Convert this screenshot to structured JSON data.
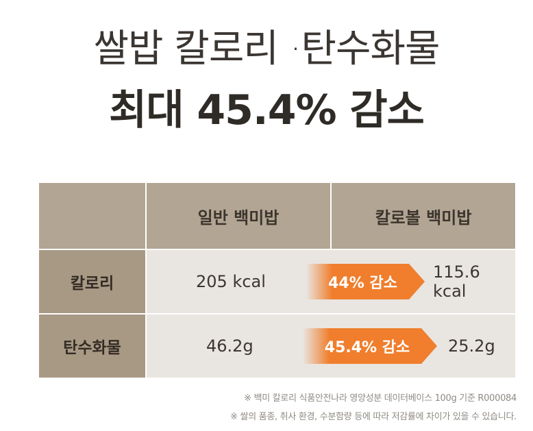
{
  "headline": {
    "line1": "쌀밥 칼로리 ·탄수화물",
    "line2": "최대 45.4% 감소"
  },
  "table": {
    "columns": [
      "일반 백미밥",
      "칼로볼 백미밥"
    ],
    "rows": [
      {
        "label": "칼로리",
        "regular": "205 kcal",
        "reduction": "44% 감소",
        "calobol": "115.6 kcal"
      },
      {
        "label": "탄수화물",
        "regular": "46.2g",
        "reduction": "45.4% 감소",
        "calobol": "25.2g"
      }
    ]
  },
  "notes": [
    "※ 백미 칼로리 식품안전나라 영양성분 데이터베이스  100g 기준 R000084",
    "※ 쌀의 품종, 취사 환경, 수분함량 등에 따라 저감률에 차이가 있을 수 있습니다."
  ],
  "colors": {
    "header_bg": "#b2a593",
    "row_label_bg": "#a89984",
    "row_body_bg": "#e9e5e0",
    "arrow_orange": "#f07e2c"
  }
}
